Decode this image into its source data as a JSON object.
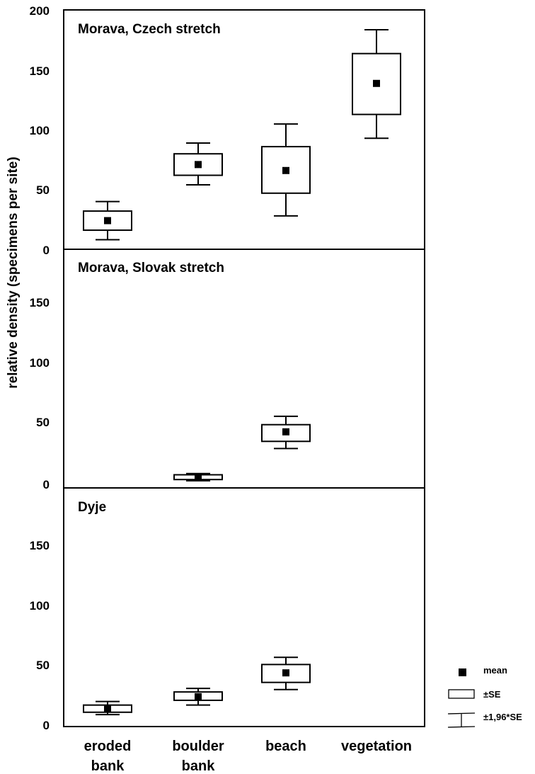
{
  "chart_data": {
    "type": "box",
    "ylabel": "relative density (specimens per site)",
    "categories": [
      {
        "line1": "eroded",
        "line2": "bank"
      },
      {
        "line1": "boulder",
        "line2": "bank"
      },
      {
        "line1": "beach",
        "line2": ""
      },
      {
        "line1": "vegetation",
        "line2": ""
      }
    ],
    "panels": [
      {
        "title": "Morava, Czech stretch",
        "yticks": [
          "200",
          "150",
          "100",
          "50",
          "0"
        ],
        "ylim": [
          0,
          200
        ],
        "boxes": [
          {
            "category": 0,
            "mean": 24,
            "se_low": 16,
            "se_high": 32,
            "ci_low": 8,
            "ci_high": 40
          },
          {
            "category": 1,
            "mean": 71,
            "se_low": 62,
            "se_high": 80,
            "ci_low": 54,
            "ci_high": 89
          },
          {
            "category": 2,
            "mean": 66,
            "se_low": 47,
            "se_high": 86,
            "ci_low": 28,
            "ci_high": 105
          },
          {
            "category": 3,
            "mean": 139,
            "se_low": 113,
            "se_high": 164,
            "ci_low": 93,
            "ci_high": 184
          }
        ]
      },
      {
        "title": "Morava, Slovak stretch",
        "yticks": [
          "150",
          "100",
          "50",
          "0"
        ],
        "ylim": [
          0,
          200
        ],
        "boxes": [
          {
            "category": 1,
            "mean": 9,
            "se_low": 7,
            "se_high": 11,
            "ci_low": 6,
            "ci_high": 12
          },
          {
            "category": 2,
            "mean": 47,
            "se_low": 39,
            "se_high": 53,
            "ci_low": 33,
            "ci_high": 60
          }
        ]
      },
      {
        "title": "Dyje",
        "yticks": [
          "150",
          "100",
          "50",
          "0"
        ],
        "ylim": [
          0,
          200
        ],
        "boxes": [
          {
            "category": 0,
            "mean": 15,
            "se_low": 12,
            "se_high": 18,
            "ci_low": 10,
            "ci_high": 21
          },
          {
            "category": 1,
            "mean": 25,
            "se_low": 22,
            "se_high": 29,
            "ci_low": 18,
            "ci_high": 32
          },
          {
            "category": 2,
            "mean": 45,
            "se_low": 37,
            "se_high": 52,
            "ci_low": 31,
            "ci_high": 58
          }
        ]
      }
    ],
    "legend": {
      "position": "bottom-right",
      "mean": "mean",
      "se": "±SE",
      "ci": "±1,96*SE"
    }
  }
}
